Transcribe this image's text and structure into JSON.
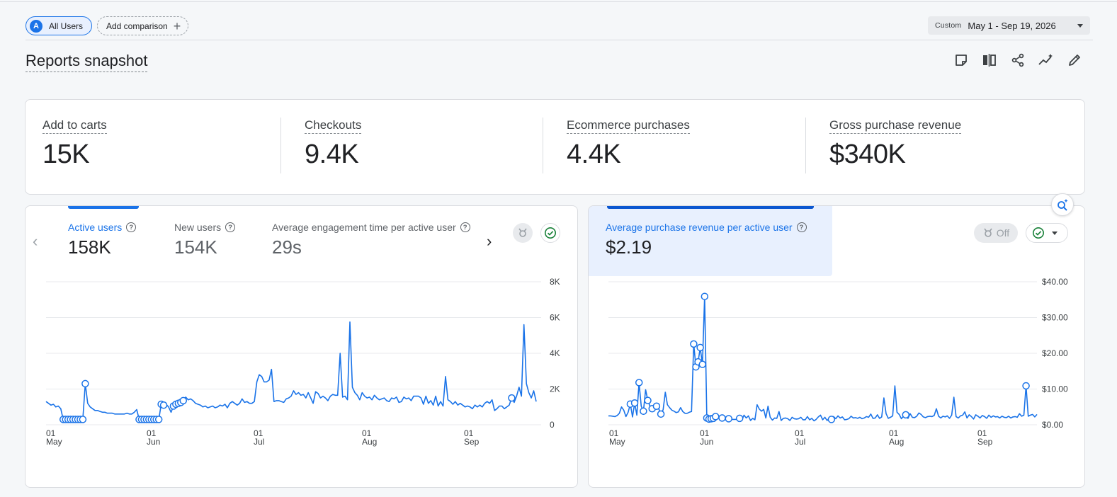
{
  "header": {
    "segment_letter": "A",
    "segment_label": "All Users",
    "add_comparison": "Add comparison",
    "date_custom": "Custom",
    "date_range": "May 1 - Sep 19, 2026"
  },
  "page_title": "Reports snapshot",
  "toolbar_icons": [
    "note-icon",
    "compare-icon",
    "share-icon",
    "insights-icon",
    "edit-icon"
  ],
  "kpis": [
    {
      "label": "Add to carts",
      "value": "15K"
    },
    {
      "label": "Checkouts",
      "value": "9.4K"
    },
    {
      "label": "Ecommerce purchases",
      "value": "4.4K"
    },
    {
      "label": "Gross purchase revenue",
      "value": "$340K"
    }
  ],
  "left_card": {
    "metrics": [
      {
        "label": "Active users",
        "value": "158K"
      },
      {
        "label": "New users",
        "value": "154K"
      },
      {
        "label": "Average engagement time per active user",
        "value": "29s"
      }
    ]
  },
  "right_card": {
    "metrics": [
      {
        "label": "Average purchase revenue per active user",
        "value": "$2.19"
      }
    ],
    "anomaly_toggle": "Off"
  },
  "colors": {
    "accent": "#1a73e8",
    "line": "#1a73e8",
    "grid": "#e8eaed",
    "check": "#188038"
  },
  "chart_data": [
    {
      "type": "line",
      "series": [
        {
          "values": [
            1300,
            1200,
            1100,
            1150,
            1000,
            1050,
            900,
            300,
            300,
            300,
            300,
            300,
            300,
            300,
            300,
            300,
            2300,
            1200,
            1000,
            900,
            800,
            800,
            750,
            700,
            700,
            650,
            650,
            650,
            600,
            600,
            600,
            600,
            600,
            650,
            600,
            600,
            700,
            850,
            300,
            300,
            300,
            300,
            300,
            300,
            300,
            300,
            300,
            1150,
            1100,
            1150,
            1000,
            700,
            1050,
            1150,
            1200,
            1250,
            1350,
            1550,
            1400,
            1450,
            1350,
            1200,
            1150,
            1100,
            1000,
            1050,
            950,
            1000,
            1050,
            950,
            1000,
            1100,
            1050,
            1150,
            950,
            1200,
            1300,
            1200,
            1100,
            1200,
            1450,
            1250,
            1300,
            1200,
            1200,
            1300,
            2400,
            2800,
            2700,
            2400,
            2400,
            2500,
            3100,
            1300,
            1350,
            1350,
            1300,
            1250,
            1450,
            1500,
            1600,
            1900,
            1700,
            1800,
            1650,
            1700,
            1500,
            1800,
            1500,
            1200,
            1850,
            1750,
            1500,
            1600,
            1500,
            1350,
            1600,
            1700,
            1650,
            1650,
            4000,
            1550,
            1600,
            1400,
            5750,
            2100,
            1800,
            1650,
            1400,
            1800,
            1600,
            1500,
            1550,
            1400,
            1650,
            1500,
            1400,
            1450,
            1500,
            1350,
            1300,
            1500,
            1450,
            1550,
            1250,
            1300,
            1550,
            1450,
            1500,
            1350,
            1600,
            1600,
            1600,
            1500,
            1150,
            1600,
            1200,
            1350,
            1100,
            1600,
            1050,
            1300,
            1050,
            2700,
            1400,
            1300,
            1150,
            1300,
            1100,
            1200,
            1100,
            1000,
            1050,
            1000,
            900,
            1100,
            1000,
            1100,
            1000,
            1200,
            1300,
            1200,
            1400,
            800,
            900,
            1050,
            1050,
            900,
            1000,
            1100,
            1500,
            1250,
            1600,
            2100,
            1600,
            5600,
            2300,
            1800,
            1500,
            1900,
            1300
          ]
        }
      ],
      "x_ticks": [
        "01 May",
        "01 Jun",
        "01 Jul",
        "01 Aug",
        "01 Sep"
      ],
      "y_ticks": [
        "0",
        "2K",
        "4K",
        "6K",
        "8K"
      ],
      "ylim": [
        0,
        8000
      ]
    },
    {
      "type": "line",
      "series": [
        {
          "values": [
            2.5,
            2.5,
            2.4,
            2.3,
            2.6,
            3.2,
            5,
            4.1,
            2.3,
            3.5,
            5.8,
            2.2,
            6.1,
            2.7,
            11.8,
            5.2,
            3.8,
            9.8,
            6.8,
            5.2,
            4.5,
            5.8,
            5.2,
            4.5,
            3,
            4.2,
            9.1,
            5.6,
            4.8,
            4.1,
            3.8,
            3.4,
            3.6,
            4.8,
            3.7,
            3.2,
            3.2,
            3.5,
            3.7,
            22.6,
            16.2,
            17.6,
            21.6,
            16.9,
            35.9,
            1.9,
            1.6,
            1.7,
            1.8,
            2.3,
            2.6,
            2.2,
            1.9,
            2.5,
            1.8,
            1.7,
            1.6,
            1.5,
            1.5,
            1.6,
            1.8,
            1.3,
            2.7,
            1.9,
            2.5,
            1.2,
            1.8,
            1.4,
            5.6,
            4.4,
            3.8,
            4.3,
            1.9,
            5.2,
            2.1,
            1.3,
            1.9,
            1.8,
            3.7,
            1.2,
            1.8,
            1.9,
            1.7,
            1.2,
            2.1,
            1.7,
            1.6,
            1.7,
            2.1,
            1.4,
            1.4,
            2.3,
            1.4,
            1.8,
            1.1,
            1.5,
            2.2,
            2.7,
            1.4,
            2.1,
            1.2,
            1.8,
            1.5,
            2.3,
            1.7,
            2.5,
            1.9,
            2.2,
            1.4,
            1.5,
            1.7,
            2.4,
            1.9,
            2,
            1.8,
            2.1,
            1.7,
            1.9,
            2.3,
            2.1,
            3,
            1.8,
            1.9,
            2.8,
            1.8,
            2.2,
            7.5,
            3.1,
            1.8,
            2.1,
            2.5,
            10.9,
            3.5,
            2.9,
            1.7,
            2.4,
            2.8,
            1.8,
            3.1,
            2.1,
            2,
            2.4,
            3.3,
            2.9,
            2.2,
            2,
            2.3,
            2.4,
            2.3,
            2.6,
            4.5,
            2.4,
            1.9,
            2.4,
            2.2,
            2.5,
            1.8,
            2.7,
            7.7,
            2.3,
            1.9,
            2.5,
            2.7,
            3.6,
            1.9,
            2.8,
            2.3,
            1.6,
            2.8,
            2.4,
            1.9,
            2.6,
            2.3,
            1.8,
            2.7,
            2.1,
            2.5,
            2.2,
            2.3,
            1.9,
            2.4,
            2.1,
            2,
            2.4,
            1.9,
            2.2,
            2.3,
            2.1,
            3.1,
            2.4,
            2.7,
            10.9,
            2.4,
            2.7,
            2.9,
            2.2,
            2.9
          ]
        }
      ],
      "x_ticks": [
        "01 May",
        "01 Jun",
        "01 Jul",
        "01 Aug",
        "01 Sep"
      ],
      "y_ticks": [
        "$0.00",
        "$10.00",
        "$20.00",
        "$30.00",
        "$40.00"
      ],
      "ylim": [
        0,
        40
      ]
    }
  ]
}
